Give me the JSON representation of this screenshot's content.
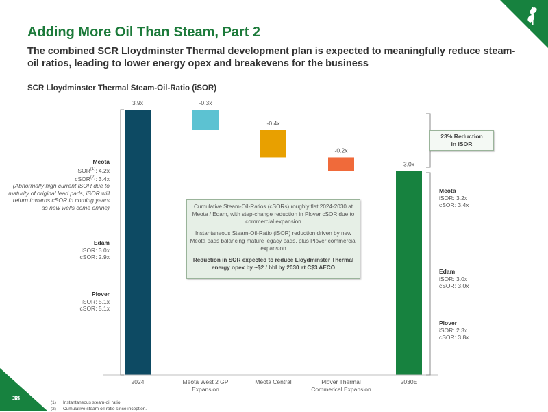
{
  "header": {
    "title": "Adding More Oil Than Steam, Part 2",
    "subtitle": "The combined SCR Lloydminster Thermal development plan is expected to meaningfully reduce steam-oil ratios, leading to lower energy opex and breakevens for the business"
  },
  "chart_data": {
    "type": "bar",
    "title": "SCR Lloydminster Thermal Steam-Oil-Ratio (iSOR)",
    "categories": [
      "2024",
      "Meota West 2 GP Expansion",
      "Meota Central",
      "Plover Thermal Commerical Expansion",
      "2030E"
    ],
    "values": [
      3.9,
      -0.3,
      -0.4,
      -0.2,
      3.0
    ],
    "value_labels": [
      "3.9x",
      "-0.3x",
      "-0.4x",
      "-0.2x",
      "3.0x"
    ],
    "kind": [
      "total",
      "delta",
      "delta",
      "delta",
      "total"
    ],
    "colors": [
      "#0d4a63",
      "#5cc2d2",
      "#e8a000",
      "#f06a3a",
      "#17823f"
    ],
    "ylim": [
      0,
      4.0
    ],
    "grid": false
  },
  "left_labels": {
    "meota": {
      "name": "Meota",
      "isor_prefix": "iSOR",
      "isor_sup": "(1)",
      "isor_value": ": 4.2x",
      "csor_prefix": "cSOR",
      "csor_sup": "(2)",
      "csor_value": ": 3.4x",
      "note": "(Abnormally high current iSOR due to maturity of original lead pads; iSOR will return towards cSOR in coming years as new wells come online)"
    },
    "edam": {
      "name": "Edam",
      "isor": "iSOR: 3.0x",
      "csor": "cSOR: 2.9x"
    },
    "plover": {
      "name": "Plover",
      "isor": "iSOR: 5.1x",
      "csor": "cSOR: 5.1x"
    }
  },
  "right_labels": {
    "meota": {
      "name": "Meota",
      "isor": "iSOR: 3.2x",
      "csor": "cSOR: 3.4x"
    },
    "edam": {
      "name": "Edam",
      "isor": "iSOR: 3.0x",
      "csor": "cSOR: 3.0x"
    },
    "plover": {
      "name": "Plover",
      "isor": "iSOR: 2.3x",
      "csor": "cSOR: 3.8x"
    }
  },
  "reduction_box": {
    "line1": "23% Reduction",
    "line2": "in iSOR"
  },
  "textbox": {
    "para1": "Cumulative Steam-Oil-Ratios (cSORs) roughly flat 2024-2030 at Meota / Edam, with step-change reduction in Plover cSOR due to commercial expansion",
    "para2": "Instantaneous Steam-Oil-Ratio (iSOR) reduction driven by new Meota pads balancing mature legacy pads, plus Plover commercial expansion",
    "para3": "Reduction in SOR expected to reduce Lloydminster Thermal energy opex by ~$2 / bbl by 2030 at C$3 AECO"
  },
  "footnotes": [
    {
      "num": "(1)",
      "text": "Instantaneous steam-oil ratio."
    },
    {
      "num": "(2)",
      "text": "Cumulative steam-oil-ratio since inception."
    }
  ],
  "page_number": "38",
  "theme": {
    "brand_green": "#1c7a3a",
    "corner_green": "#17823f",
    "leaf_icon": "leaf-logo-icon"
  }
}
